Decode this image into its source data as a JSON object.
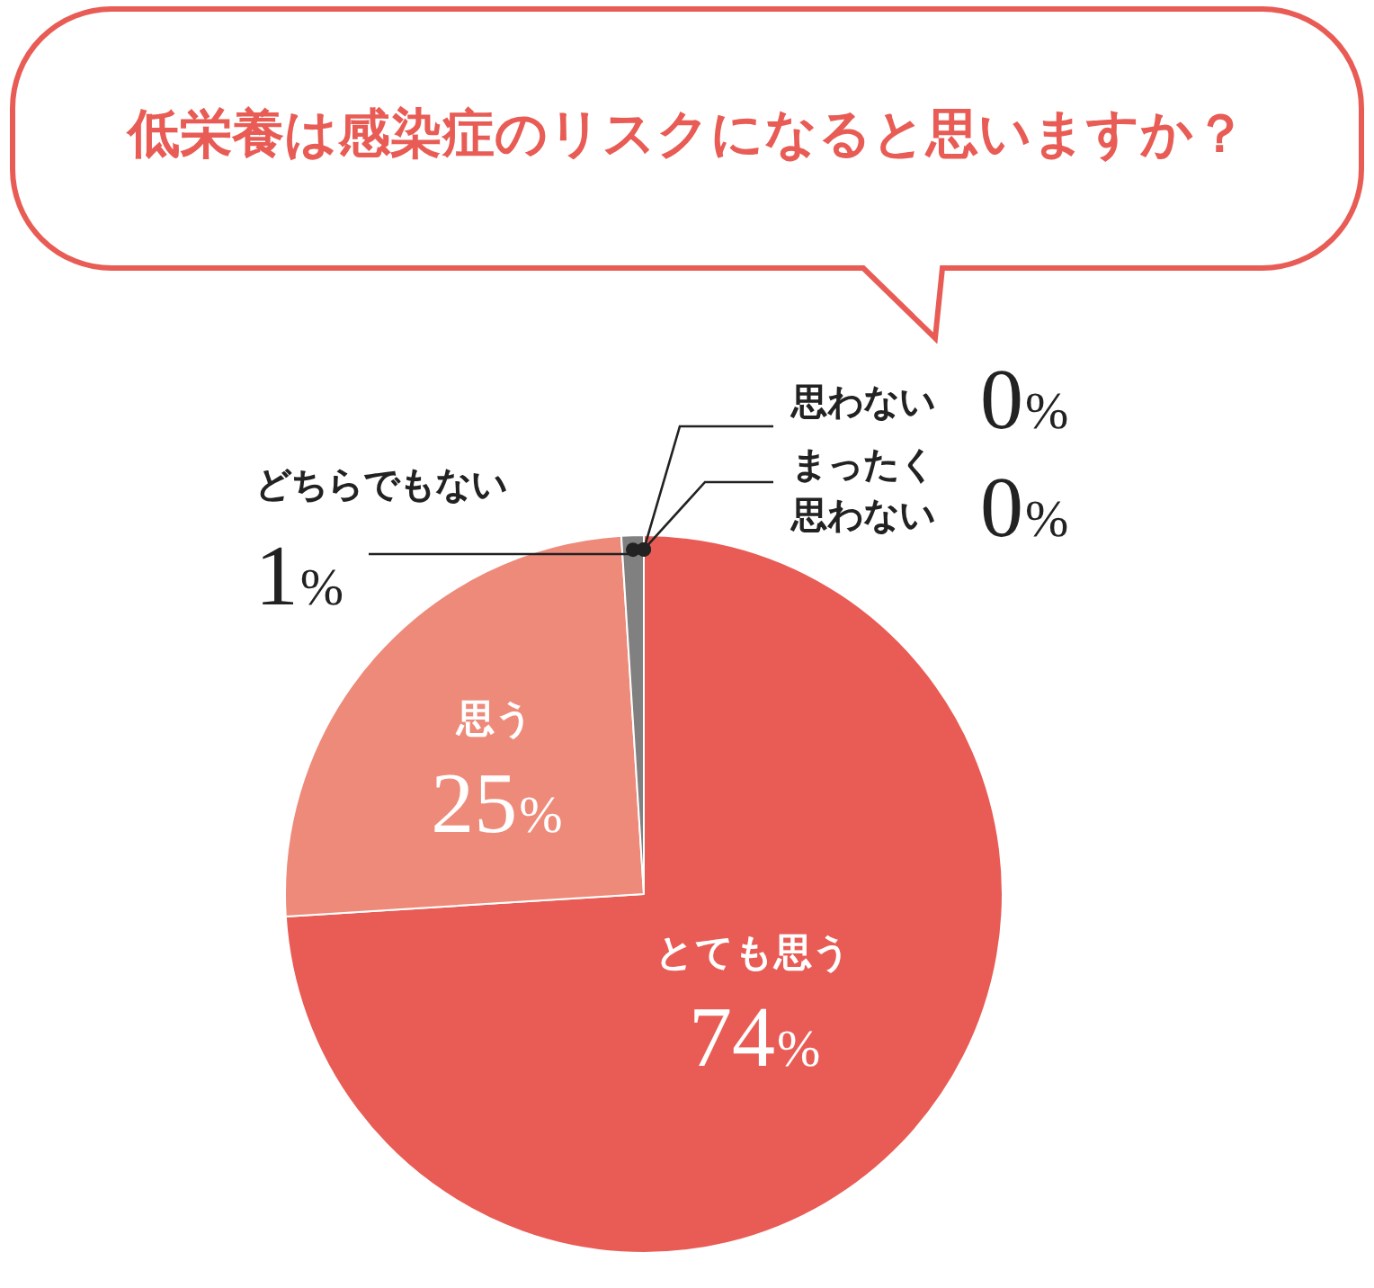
{
  "chart_data": {
    "type": "pie",
    "title": "低栄養は感染症のリスクになると思いますか？",
    "categories": [
      "とても思う",
      "思う",
      "どちらでもない",
      "思わない",
      "まったく思わない"
    ],
    "values": [
      74,
      25,
      1,
      0,
      0
    ],
    "value_labels": [
      "74%",
      "25%",
      "1%",
      "0%",
      "0%"
    ],
    "colors": [
      "#e85c55",
      "#ee8a7a",
      "#808080",
      "#808080",
      "#808080"
    ]
  }
}
